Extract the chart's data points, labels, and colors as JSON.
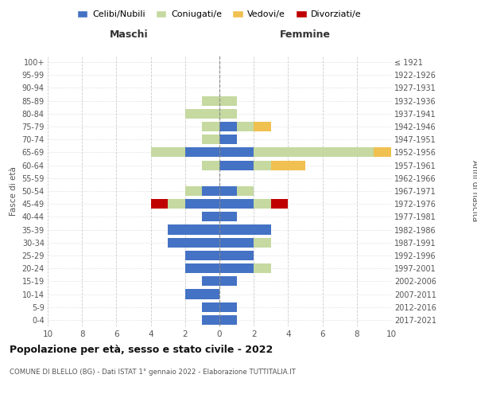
{
  "age_groups": [
    "0-4",
    "5-9",
    "10-14",
    "15-19",
    "20-24",
    "25-29",
    "30-34",
    "35-39",
    "40-44",
    "45-49",
    "50-54",
    "55-59",
    "60-64",
    "65-69",
    "70-74",
    "75-79",
    "80-84",
    "85-89",
    "90-94",
    "95-99",
    "100+"
  ],
  "birth_years": [
    "2017-2021",
    "2012-2016",
    "2007-2011",
    "2002-2006",
    "1997-2001",
    "1992-1996",
    "1987-1991",
    "1982-1986",
    "1977-1981",
    "1972-1976",
    "1967-1971",
    "1962-1966",
    "1957-1961",
    "1952-1956",
    "1947-1951",
    "1942-1946",
    "1937-1941",
    "1932-1936",
    "1927-1931",
    "1922-1926",
    "≤ 1921"
  ],
  "maschi": {
    "celibi": [
      1,
      1,
      2,
      1,
      2,
      2,
      3,
      3,
      1,
      2,
      1,
      0,
      0,
      2,
      0,
      0,
      0,
      0,
      0,
      0,
      0
    ],
    "coniugati": [
      0,
      0,
      0,
      0,
      0,
      0,
      0,
      0,
      0,
      1,
      1,
      0,
      1,
      2,
      1,
      1,
      2,
      1,
      0,
      0,
      0
    ],
    "vedovi": [
      0,
      0,
      0,
      0,
      0,
      0,
      0,
      0,
      0,
      0,
      0,
      0,
      0,
      0,
      0,
      0,
      0,
      0,
      0,
      0,
      0
    ],
    "divorziati": [
      0,
      0,
      0,
      0,
      0,
      0,
      0,
      0,
      0,
      1,
      0,
      0,
      0,
      0,
      0,
      0,
      0,
      0,
      0,
      0,
      0
    ]
  },
  "femmine": {
    "nubili": [
      1,
      1,
      0,
      1,
      2,
      2,
      2,
      3,
      1,
      2,
      1,
      0,
      2,
      2,
      1,
      1,
      0,
      0,
      0,
      0,
      0
    ],
    "coniugate": [
      0,
      0,
      0,
      0,
      1,
      0,
      1,
      0,
      0,
      1,
      1,
      0,
      1,
      7,
      0,
      1,
      1,
      1,
      0,
      0,
      0
    ],
    "vedove": [
      0,
      0,
      0,
      0,
      0,
      0,
      0,
      0,
      0,
      0,
      0,
      0,
      2,
      1,
      0,
      1,
      0,
      0,
      0,
      0,
      0
    ],
    "divorziate": [
      0,
      0,
      0,
      0,
      0,
      0,
      0,
      0,
      0,
      1,
      0,
      0,
      0,
      0,
      0,
      0,
      0,
      0,
      0,
      0,
      0
    ]
  },
  "color_celibi": "#4472c4",
  "color_coniugati": "#c5d9a0",
  "color_vedovi": "#f0c050",
  "color_divorziati": "#c00000",
  "title": "Popolazione per età, sesso e stato civile - 2022",
  "subtitle": "COMUNE DI BLELLO (BG) - Dati ISTAT 1° gennaio 2022 - Elaborazione TUTTITALIA.IT",
  "xlabel_left": "Maschi",
  "xlabel_right": "Femmine",
  "ylabel_left": "Fasce di età",
  "ylabel_right": "Anni di nascita",
  "xlim": 10,
  "legend_labels": [
    "Celibi/Nubili",
    "Coniugati/e",
    "Vedovi/e",
    "Divorziati/e"
  ]
}
